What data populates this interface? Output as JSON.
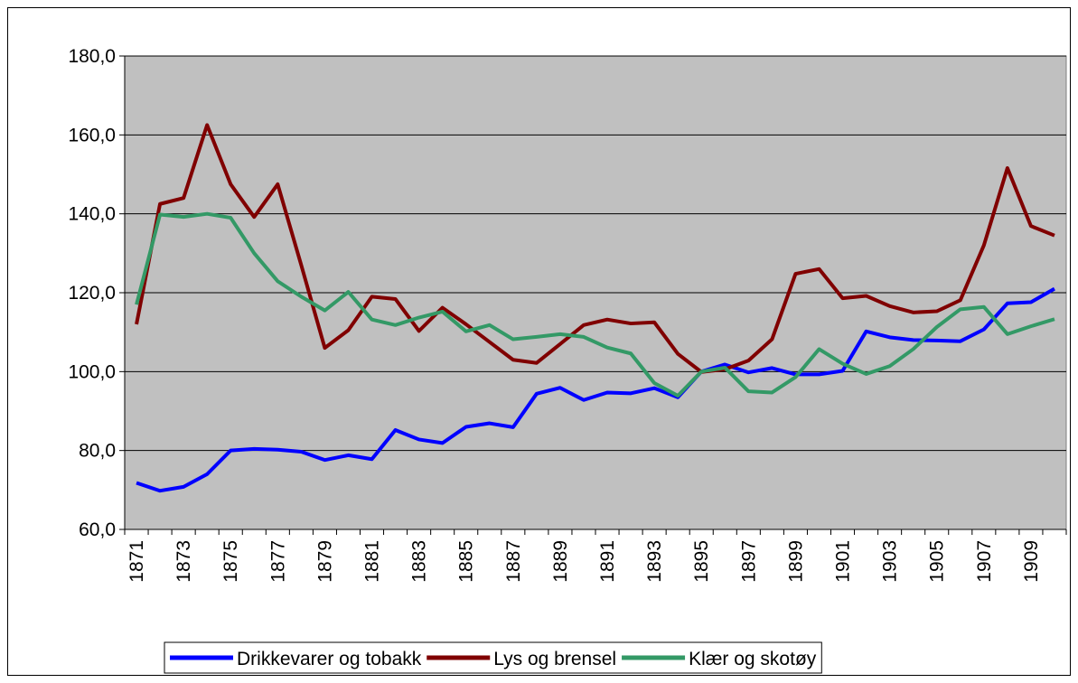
{
  "chart_data": {
    "type": "line",
    "categories": [
      "1871",
      null,
      "1873",
      null,
      "1875",
      null,
      "1877",
      null,
      "1879",
      null,
      "1881",
      null,
      "1883",
      null,
      "1885",
      null,
      "1887",
      null,
      "1889",
      null,
      "1891",
      null,
      "1893",
      null,
      "1895",
      null,
      "1897",
      null,
      "1899",
      null,
      "1901",
      null,
      "1903",
      null,
      "1905",
      null,
      "1907",
      null,
      "1909",
      null
    ],
    "series": [
      {
        "name": "Drikkevarer og tobakk",
        "color": "#0000ff",
        "values": [
          71.8,
          69.8,
          70.8,
          74,
          80,
          80.4,
          80.2,
          79.7,
          77.6,
          78.8,
          77.8,
          85.2,
          82.8,
          81.9,
          86,
          86.9,
          85.9,
          94.4,
          95.9,
          92.8,
          94.7,
          94.5,
          95.8,
          93.5,
          100,
          101.8,
          99.8,
          100.9,
          99.3,
          99.3,
          100.2,
          110.2,
          108.7,
          108,
          107.9,
          107.7,
          110.7,
          117.3,
          117.6,
          121
        ]
      },
      {
        "name": "Lys og brensel",
        "color": "#800000",
        "values": [
          112,
          142.5,
          144,
          162.5,
          147.5,
          139.2,
          147.5,
          127,
          106,
          110.5,
          119,
          118.4,
          110.3,
          116.2,
          112,
          107.5,
          103,
          102.2,
          107,
          111.8,
          113.2,
          112.2,
          112.5,
          104.5,
          99.9,
          100.6,
          102.8,
          108.2,
          124.8,
          126,
          118.6,
          119.2,
          116.6,
          115,
          115.3,
          118.1,
          132,
          151.6,
          136.9,
          134.5
        ]
      },
      {
        "name": "Klær og skotøy",
        "color": "#339966",
        "values": [
          117,
          139.8,
          139.2,
          140,
          139,
          130,
          122.9,
          119,
          115.5,
          120.2,
          113.2,
          111.8,
          113.7,
          115.2,
          110.2,
          111.8,
          108.2,
          108.8,
          109.5,
          108.8,
          106.1,
          104.6,
          97.1,
          93.9,
          100,
          101,
          95,
          94.7,
          98.6,
          105.7,
          102,
          99.4,
          101.4,
          105.7,
          111.3,
          115.8,
          116.4,
          109.5,
          111.5,
          113.3
        ]
      }
    ],
    "ylim": [
      60,
      180
    ],
    "yticks": [
      {
        "value": 60,
        "label": "60,0"
      },
      {
        "value": 80,
        "label": "80,0"
      },
      {
        "value": 100,
        "label": "100,0"
      },
      {
        "value": 120,
        "label": "120,0"
      },
      {
        "value": 140,
        "label": "140,0"
      },
      {
        "value": 160,
        "label": "160,0"
      },
      {
        "value": 180,
        "label": "180,0"
      }
    ],
    "grid": true,
    "legend": "bottom",
    "plot_background": "#c0c0c0"
  }
}
